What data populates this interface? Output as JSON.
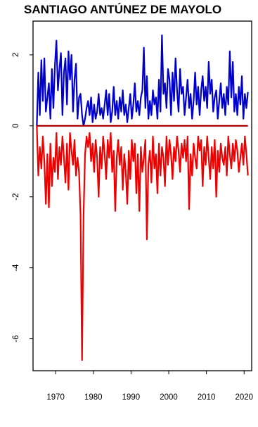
{
  "chart_data": {
    "type": "line",
    "title": "SANTIAGO ANTÚNEZ DE MAYOLO",
    "xlabel": "",
    "ylabel": "",
    "xlim": [
      1964,
      2022
    ],
    "ylim": [
      -6.9,
      2.95
    ],
    "x_ticks": [
      1970,
      1980,
      1990,
      2000,
      2010,
      2020
    ],
    "y_ticks": [
      2,
      0,
      -2,
      -4,
      -6
    ],
    "grid": false,
    "legend": "none",
    "colors": {
      "positive": "#0000cc",
      "negative": "#ee0000",
      "baseline": "#b00000"
    },
    "series": [
      {
        "color": "#0000cc",
        "x": [
          1965.0,
          1965.4,
          1965.8,
          1966.2,
          1966.6,
          1967.0,
          1967.4,
          1967.8,
          1968.2,
          1968.6,
          1969.0,
          1969.4,
          1969.8,
          1970.2,
          1970.6,
          1971.0,
          1971.4,
          1971.8,
          1972.2,
          1972.6,
          1973.0,
          1973.4,
          1973.8,
          1974.2,
          1974.6,
          1975.0,
          1975.4,
          1975.8,
          1976.2,
          1976.6,
          1977.0,
          1977.4,
          1977.8,
          1978.2,
          1978.6,
          1979.0,
          1979.4,
          1979.8,
          1980.2,
          1980.6,
          1981.0,
          1981.4,
          1981.8,
          1982.2,
          1982.6,
          1983.0,
          1983.4,
          1983.8,
          1984.2,
          1984.6,
          1985.0,
          1985.4,
          1985.8,
          1986.2,
          1986.6,
          1987.0,
          1987.4,
          1987.8,
          1988.2,
          1988.6,
          1989.0,
          1989.4,
          1989.8,
          1990.2,
          1990.6,
          1991.0,
          1991.4,
          1991.8,
          1992.2,
          1992.6,
          1993.0,
          1993.4,
          1993.8,
          1994.2,
          1994.6,
          1995.0,
          1995.4,
          1995.8,
          1996.2,
          1996.6,
          1997.0,
          1997.4,
          1997.8,
          1998.2,
          1998.6,
          1999.0,
          1999.4,
          1999.8,
          2000.2,
          2000.6,
          2001.0,
          2001.4,
          2001.8,
          2002.2,
          2002.6,
          2003.0,
          2003.4,
          2003.8,
          2004.2,
          2004.6,
          2005.0,
          2005.4,
          2005.8,
          2006.2,
          2006.6,
          2007.0,
          2007.4,
          2007.8,
          2008.2,
          2008.6,
          2009.0,
          2009.4,
          2009.8,
          2010.2,
          2010.6,
          2011.0,
          2011.4,
          2011.8,
          2012.2,
          2012.6,
          2013.0,
          2013.4,
          2013.8,
          2014.2,
          2014.6,
          2015.0,
          2015.4,
          2015.8,
          2016.2,
          2016.6,
          2017.0,
          2017.4,
          2017.8,
          2018.2,
          2018.6,
          2019.0,
          2019.4,
          2019.8,
          2020.2,
          2020.6,
          2021.0
        ],
        "values": [
          0,
          1.5,
          0.3,
          1.85,
          0.7,
          1.9,
          0.4,
          0.8,
          1.2,
          0.2,
          1.6,
          0.5,
          1.7,
          2.4,
          1.0,
          1.6,
          2.05,
          0.3,
          1.5,
          1.9,
          0.6,
          2.1,
          1.3,
          2.0,
          0.4,
          1.3,
          1.75,
          0.2,
          0.8,
          0.9,
          0.3,
          0,
          0.2,
          0.5,
          0.7,
          0.3,
          0.8,
          0.1,
          0.6,
          0.2,
          0.4,
          0.9,
          0.3,
          0.5,
          0.2,
          0.6,
          1.0,
          0.3,
          0.9,
          0.1,
          0.4,
          1.1,
          0.3,
          0.7,
          0.2,
          0.8,
          0.4,
          1.0,
          0.3,
          0.6,
          0.1,
          0.5,
          0.9,
          0.2,
          0.6,
          1.2,
          0.4,
          0.7,
          0.3,
          0.8,
          1.0,
          2.2,
          0.5,
          1.4,
          0.2,
          0.7,
          0.3,
          1.0,
          0.6,
          0.8,
          0.2,
          1.3,
          0.4,
          2.55,
          0.9,
          1.2,
          0.5,
          1.6,
          1.3,
          0.3,
          1.5,
          0.7,
          1.9,
          1.0,
          0.4,
          1.6,
          0.9,
          1.1,
          0.3,
          0.8,
          1.3,
          0.5,
          0.9,
          0.2,
          0.7,
          1.5,
          0.6,
          1.1,
          0.3,
          1.0,
          1.4,
          0.7,
          1.1,
          0.5,
          1.8,
          0.9,
          1.3,
          0.4,
          0.8,
          1.0,
          0.2,
          0.7,
          1.2,
          0.5,
          0.9,
          0.3,
          1.1,
          0.6,
          2.1,
          0.8,
          1.8,
          0.4,
          0.9,
          0.3,
          1.1,
          0.6,
          1.4,
          0.2,
          0.9,
          0.5,
          0.95
        ]
      },
      {
        "color": "#ee0000",
        "x": [
          1965.0,
          1965.4,
          1965.8,
          1966.2,
          1966.6,
          1967.0,
          1967.4,
          1967.8,
          1968.2,
          1968.6,
          1969.0,
          1969.4,
          1969.8,
          1970.2,
          1970.6,
          1971.0,
          1971.4,
          1971.8,
          1972.2,
          1972.6,
          1973.0,
          1973.4,
          1973.8,
          1974.2,
          1974.6,
          1975.0,
          1975.4,
          1975.8,
          1976.2,
          1976.6,
          1977.0,
          1977.4,
          1977.8,
          1978.2,
          1978.6,
          1979.0,
          1979.4,
          1979.8,
          1980.2,
          1980.6,
          1981.0,
          1981.4,
          1981.8,
          1982.2,
          1982.6,
          1983.0,
          1983.4,
          1983.8,
          1984.2,
          1984.6,
          1985.0,
          1985.4,
          1985.8,
          1986.2,
          1986.6,
          1987.0,
          1987.4,
          1987.8,
          1988.2,
          1988.6,
          1989.0,
          1989.4,
          1989.8,
          1990.2,
          1990.6,
          1991.0,
          1991.4,
          1991.8,
          1992.2,
          1992.6,
          1993.0,
          1993.4,
          1993.8,
          1994.2,
          1994.6,
          1995.0,
          1995.4,
          1995.8,
          1996.2,
          1996.6,
          1997.0,
          1997.4,
          1997.8,
          1998.2,
          1998.6,
          1999.0,
          1999.4,
          1999.8,
          2000.2,
          2000.6,
          2001.0,
          2001.4,
          2001.8,
          2002.2,
          2002.6,
          2003.0,
          2003.4,
          2003.8,
          2004.2,
          2004.6,
          2005.0,
          2005.4,
          2005.8,
          2006.2,
          2006.6,
          2007.0,
          2007.4,
          2007.8,
          2008.2,
          2008.6,
          2009.0,
          2009.4,
          2009.8,
          2010.2,
          2010.6,
          2011.0,
          2011.4,
          2011.8,
          2012.2,
          2012.6,
          2013.0,
          2013.4,
          2013.8,
          2014.2,
          2014.6,
          2015.0,
          2015.4,
          2015.8,
          2016.2,
          2016.6,
          2017.0,
          2017.4,
          2017.8,
          2018.2,
          2018.6,
          2019.0,
          2019.4,
          2019.8,
          2020.2,
          2020.6,
          2021.0
        ],
        "values": [
          0,
          -1.4,
          -0.6,
          -1.2,
          -0.3,
          -1.0,
          -2.2,
          -0.8,
          -2.3,
          -0.5,
          -1.7,
          -0.9,
          -1.3,
          -0.2,
          -1.5,
          -0.6,
          -1.1,
          -0.3,
          -0.9,
          -1.6,
          -0.5,
          -1.8,
          -0.2,
          -0.7,
          -1.1,
          -0.4,
          -1.4,
          -0.9,
          -1.3,
          -2.5,
          -6.6,
          -2.5,
          -0.8,
          -0.3,
          -0.6,
          -0.2,
          -1.0,
          -0.5,
          -1.3,
          -0.4,
          -0.9,
          -2.0,
          -0.6,
          -1.2,
          -0.3,
          -0.8,
          -1.5,
          -0.4,
          -0.9,
          -0.2,
          -1.3,
          -0.7,
          -2.4,
          -0.9,
          -0.4,
          -1.1,
          -0.6,
          -1.8,
          -0.8,
          -1.3,
          -2.2,
          -0.7,
          -1.5,
          -0.4,
          -1.0,
          -0.5,
          -1.9,
          -0.8,
          -2.4,
          -0.6,
          -1.3,
          -0.9,
          -0.4,
          -3.2,
          -1.1,
          -0.7,
          -1.6,
          -0.3,
          -1.2,
          -0.8,
          -1.9,
          -0.5,
          -1.4,
          -0.6,
          -0.9,
          -1.7,
          -0.3,
          -1.1,
          -0.4,
          -0.8,
          -1.5,
          -0.6,
          -1.0,
          -0.3,
          -0.7,
          -1.3,
          -0.5,
          -0.9,
          -0.4,
          -1.0,
          -0.3,
          -2.35,
          -0.8,
          -1.4,
          -0.5,
          -0.9,
          -1.2,
          -0.3,
          -0.7,
          -0.4,
          -1.7,
          -0.6,
          -1.1,
          -0.3,
          -0.9,
          -1.5,
          -0.6,
          -1.2,
          -0.4,
          -2.0,
          -0.7,
          -1.3,
          -0.5,
          -0.9,
          -1.1,
          -0.6,
          -1.4,
          -0.3,
          -0.8,
          -1.2,
          -0.5,
          -1.0,
          -0.4,
          -0.7,
          -1.3,
          -0.9,
          -0.5,
          -1.1,
          -0.3,
          -0.8,
          -1.4
        ]
      }
    ]
  }
}
